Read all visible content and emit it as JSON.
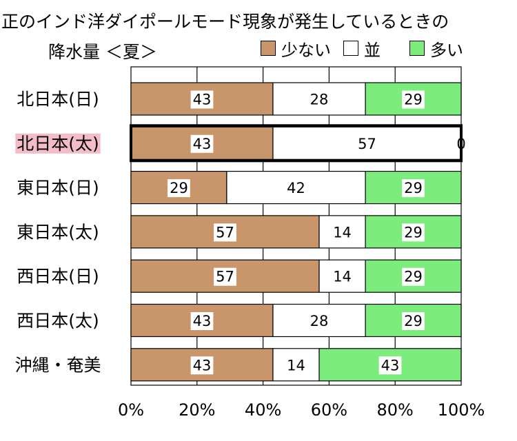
{
  "chart_data": {
    "type": "bar",
    "orientation": "horizontal",
    "stacked": true,
    "title_line1": "正のインド洋ダイポールモード現象が発生しているときの",
    "title_line2": "降水量 ＜夏＞",
    "categories": [
      "北日本(日)",
      "北日本(太)",
      "東日本(日)",
      "東日本(太)",
      "西日本(日)",
      "西日本(太)",
      "沖縄・奄美"
    ],
    "highlighted_category": "北日本(太)",
    "series": [
      {
        "name": "少ない",
        "color": "#c8966a",
        "values": [
          43,
          43,
          29,
          57,
          57,
          43,
          43
        ]
      },
      {
        "name": "並",
        "color": "#ffffff",
        "values": [
          28,
          57,
          42,
          14,
          14,
          28,
          14
        ]
      },
      {
        "name": "多い",
        "color": "#7ced7c",
        "values": [
          29,
          0,
          29,
          29,
          29,
          29,
          43
        ]
      }
    ],
    "xlim": [
      0,
      100
    ],
    "x_ticks": [
      "0%",
      "20%",
      "40%",
      "60%",
      "80%",
      "100%"
    ],
    "grid": true,
    "highlight_color": "#f4bcc8"
  }
}
